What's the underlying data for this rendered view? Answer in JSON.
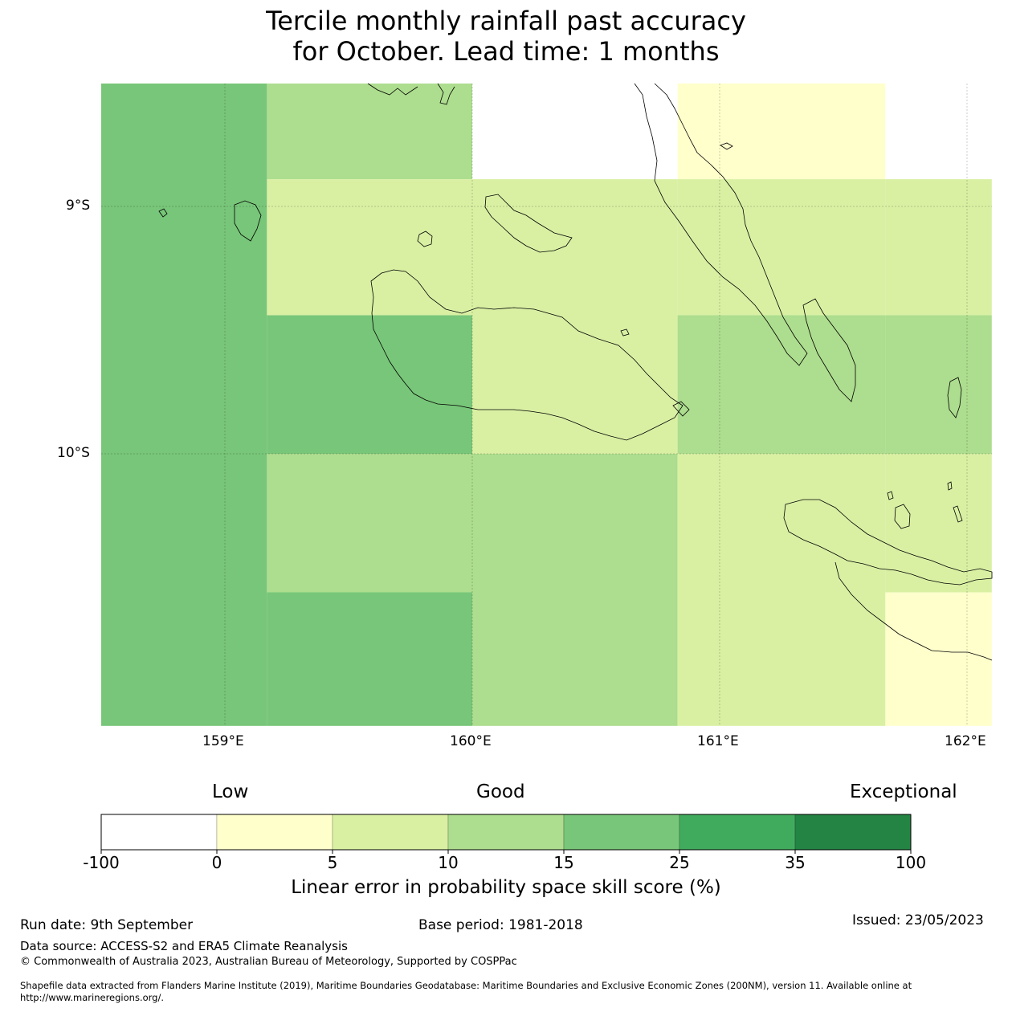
{
  "title_line1": "Tercile monthly rainfall past accuracy",
  "title_line2": "for October. Lead time: 1 months",
  "map": {
    "lat_ticks": [
      "9°S",
      "10°S"
    ],
    "lon_ticks": [
      "159°E",
      "160°E",
      "161°E",
      "162°E"
    ],
    "extent": {
      "lon_min": 158.5,
      "lon_max": 162.1,
      "lat_top": -8.5,
      "lat_bottom": -11.1
    },
    "cells": [
      {
        "lon0": 158.5,
        "lon1": 159.17,
        "lat0": -8.5,
        "lat1": -11.1,
        "category": "15-25"
      },
      {
        "lon0": 159.17,
        "lon1": 160.0,
        "lat0": -8.5,
        "lat1": -8.89,
        "category": "10-15"
      },
      {
        "lon0": 159.17,
        "lon1": 160.0,
        "lat0": -8.89,
        "lat1": -9.44,
        "category": "5-10"
      },
      {
        "lon0": 159.17,
        "lon1": 160.0,
        "lat0": -9.44,
        "lat1": -10.0,
        "category": "15-25"
      },
      {
        "lon0": 159.17,
        "lon1": 160.0,
        "lat0": -10.0,
        "lat1": -10.56,
        "category": "10-15"
      },
      {
        "lon0": 159.17,
        "lon1": 160.0,
        "lat0": -10.56,
        "lat1": -11.1,
        "category": "15-25"
      },
      {
        "lon0": 160.0,
        "lon1": 160.83,
        "lat0": -8.5,
        "lat1": -8.89,
        "category": "-100-0"
      },
      {
        "lon0": 160.0,
        "lon1": 160.83,
        "lat0": -8.89,
        "lat1": -10.0,
        "category": "5-10"
      },
      {
        "lon0": 160.0,
        "lon1": 160.83,
        "lat0": -10.0,
        "lat1": -11.1,
        "category": "10-15"
      },
      {
        "lon0": 160.83,
        "lon1": 161.67,
        "lat0": -8.5,
        "lat1": -8.89,
        "category": "0-5"
      },
      {
        "lon0": 160.83,
        "lon1": 161.67,
        "lat0": -8.89,
        "lat1": -9.44,
        "category": "5-10"
      },
      {
        "lon0": 160.83,
        "lon1": 161.67,
        "lat0": -9.44,
        "lat1": -10.0,
        "category": "10-15"
      },
      {
        "lon0": 160.83,
        "lon1": 161.67,
        "lat0": -10.0,
        "lat1": -11.1,
        "category": "5-10"
      },
      {
        "lon0": 161.67,
        "lon1": 162.1,
        "lat0": -8.5,
        "lat1": -8.89,
        "category": "-100-0"
      },
      {
        "lon0": 161.67,
        "lon1": 162.1,
        "lat0": -8.89,
        "lat1": -9.44,
        "category": "5-10"
      },
      {
        "lon0": 161.67,
        "lon1": 162.1,
        "lat0": -9.44,
        "lat1": -10.0,
        "category": "10-15"
      },
      {
        "lon0": 161.67,
        "lon1": 162.1,
        "lat0": -10.0,
        "lat1": -10.56,
        "category": "5-10"
      },
      {
        "lon0": 161.67,
        "lon1": 162.1,
        "lat0": -10.56,
        "lat1": -11.1,
        "category": "0-5"
      }
    ]
  },
  "colorbar": {
    "word_low": "Low",
    "word_good": "Good",
    "word_exceptional": "Exceptional",
    "ticks": [
      "-100",
      "0",
      "5",
      "10",
      "15",
      "25",
      "35",
      "100"
    ],
    "colors": {
      "-100-0": "#ffffff",
      "0-5": "#ffffcc",
      "5-10": "#d9f0a3",
      "10-15": "#addd8e",
      "15-25": "#78c679",
      "25-35": "#41ab5d",
      "35-100": "#238443"
    },
    "order": [
      "-100-0",
      "0-5",
      "5-10",
      "10-15",
      "15-25",
      "25-35",
      "35-100"
    ],
    "label": "Linear error in probability space skill score (%)"
  },
  "footer": {
    "run_date": "Run date: 9th September",
    "base_period": "Base period: 1981-2018",
    "issued": "Issued: 23/05/2023",
    "data_source": "Data source: ACCESS-S2 and ERA5 Climate Reanalysis",
    "copyright": "© Commonwealth of Australia 2023, Australian Bureau of Meteorology, Supported by COSPPac",
    "shapefile_line1": "Shapefile data extracted from Flanders Marine Institute (2019), Maritime Boundaries Geodatabase: Maritime Boundaries and Exclusive Economic Zones (200NM), version 11. Available online at",
    "shapefile_line2": "http://www.marineregions.org/."
  }
}
